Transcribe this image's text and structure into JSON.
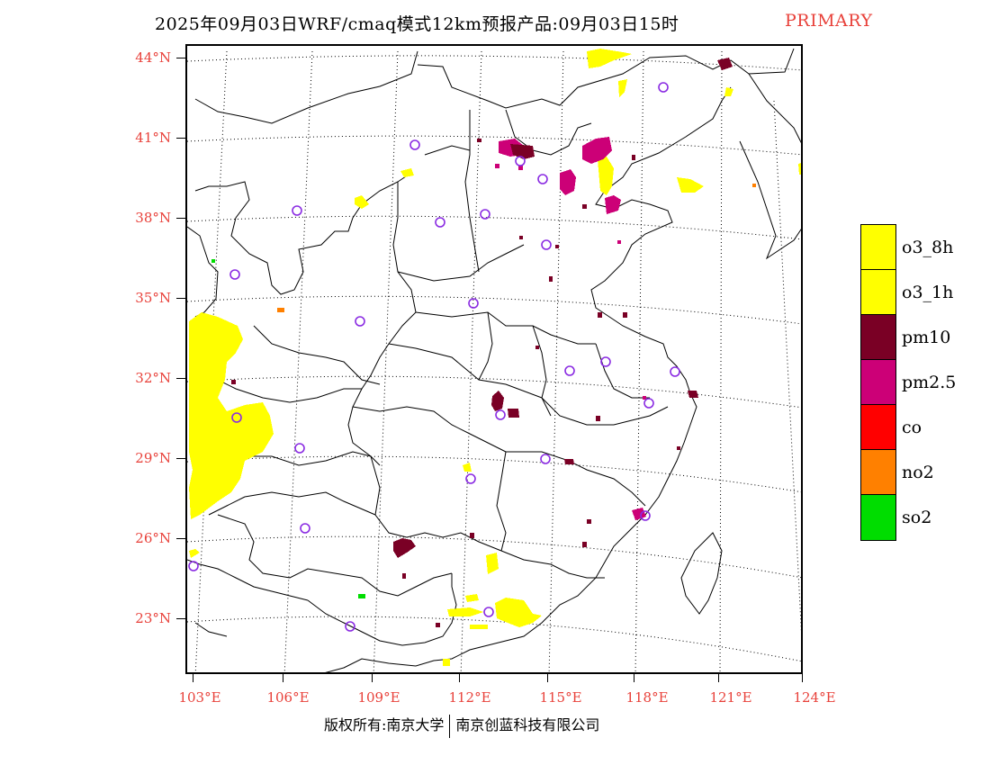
{
  "title": {
    "main": "2025年09月03日WRF/cmaq模式12km预报产品:09月03日15时",
    "tag": "PRIMARY"
  },
  "colors": {
    "tag": "#e8413a",
    "o3_8h": "#ffff00",
    "o3_1h": "#ffff00",
    "pm10": "#7a0025",
    "pm25": "#cc0077",
    "co": "#ff0000",
    "no2": "#ff8000",
    "so2": "#00dd00",
    "station_marker": "#8a2be2"
  },
  "axes": {
    "lat_labels": [
      "44°N",
      "41°N",
      "38°N",
      "35°N",
      "32°N",
      "29°N",
      "26°N",
      "23°N"
    ],
    "lon_labels": [
      "103°E",
      "106°E",
      "109°E",
      "112°E",
      "115°E",
      "118°E",
      "121°E",
      "124°E"
    ]
  },
  "legend": {
    "items": [
      {
        "label": "o3_8h",
        "color": "#ffff00"
      },
      {
        "label": "o3_1h",
        "color": "#ffff00"
      },
      {
        "label": "pm10",
        "color": "#7a0025"
      },
      {
        "label": "pm2.5",
        "color": "#cc0077"
      },
      {
        "label": "co",
        "color": "#ff0000"
      },
      {
        "label": "no2",
        "color": "#ff8000"
      },
      {
        "label": "so2",
        "color": "#00dd00"
      }
    ]
  },
  "footer": {
    "left": "版权所有:南京大学",
    "right": "南京创蓝科技有限公司"
  }
}
